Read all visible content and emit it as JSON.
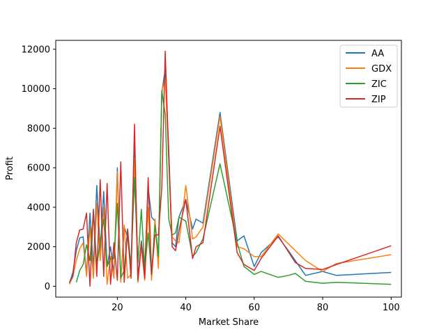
{
  "chart_data": {
    "type": "line",
    "title": "",
    "xlabel": "Market Share",
    "ylabel": "Profit",
    "xlim": [
      2,
      103
    ],
    "ylim": [
      -550,
      12450
    ],
    "xticks": [
      20,
      40,
      60,
      80,
      100
    ],
    "yticks": [
      0,
      2000,
      4000,
      6000,
      8000,
      10000,
      12000
    ],
    "xtick_labels": [
      "20",
      "40",
      "60",
      "80",
      "100"
    ],
    "ytick_labels": [
      "0",
      "2000",
      "4000",
      "6000",
      "8000",
      "10000",
      "12000"
    ],
    "grid": false,
    "legend_position": "top-right",
    "series": [
      {
        "name": "AA",
        "color": "#1f77b4",
        "points": [
          [
            6,
            150
          ],
          [
            7,
            700
          ],
          [
            8,
            1800
          ],
          [
            9,
            2450
          ],
          [
            10,
            2500
          ],
          [
            11,
            600
          ],
          [
            12,
            3700
          ],
          [
            13,
            900
          ],
          [
            14,
            5100
          ],
          [
            15,
            1800
          ],
          [
            16,
            4800
          ],
          [
            17,
            1000
          ],
          [
            18,
            2000
          ],
          [
            19,
            600
          ],
          [
            20,
            6000
          ],
          [
            21,
            300
          ],
          [
            22,
            3000
          ],
          [
            23,
            2500
          ],
          [
            24,
            800
          ],
          [
            25,
            7600
          ],
          [
            26,
            400
          ],
          [
            27,
            2300
          ],
          [
            28,
            800
          ],
          [
            29,
            5000
          ],
          [
            30,
            3500
          ],
          [
            31,
            3300
          ],
          [
            32,
            1500
          ],
          [
            33,
            9800
          ],
          [
            34,
            11000
          ],
          [
            35,
            7000
          ],
          [
            36,
            2200
          ],
          [
            37,
            2000
          ],
          [
            38,
            3500
          ],
          [
            40,
            4400
          ],
          [
            42,
            2900
          ],
          [
            43,
            3400
          ],
          [
            45,
            3200
          ],
          [
            50,
            8800
          ],
          [
            55,
            2300
          ],
          [
            57,
            2550
          ],
          [
            60,
            1000
          ],
          [
            62,
            1700
          ],
          [
            67,
            2500
          ],
          [
            70,
            1800
          ],
          [
            75,
            550
          ],
          [
            80,
            750
          ],
          [
            84,
            550
          ],
          [
            100,
            700
          ]
        ]
      },
      {
        "name": "GDX",
        "color": "#ff7f0e",
        "points": [
          [
            6,
            100
          ],
          [
            7,
            500
          ],
          [
            8,
            1300
          ],
          [
            9,
            1900
          ],
          [
            10,
            2200
          ],
          [
            11,
            500
          ],
          [
            12,
            3000
          ],
          [
            13,
            400
          ],
          [
            14,
            4200
          ],
          [
            15,
            1300
          ],
          [
            16,
            4000
          ],
          [
            17,
            100
          ],
          [
            18,
            1500
          ],
          [
            19,
            400
          ],
          [
            20,
            5800
          ],
          [
            21,
            200
          ],
          [
            22,
            3100
          ],
          [
            23,
            400
          ],
          [
            24,
            600
          ],
          [
            25,
            6500
          ],
          [
            26,
            200
          ],
          [
            27,
            2000
          ],
          [
            28,
            300
          ],
          [
            29,
            4000
          ],
          [
            30,
            300
          ],
          [
            31,
            3400
          ],
          [
            32,
            900
          ],
          [
            33,
            9900
          ],
          [
            34,
            10500
          ],
          [
            35,
            6500
          ],
          [
            36,
            2500
          ],
          [
            37,
            2300
          ],
          [
            38,
            2200
          ],
          [
            40,
            5100
          ],
          [
            42,
            2400
          ],
          [
            43,
            2500
          ],
          [
            45,
            3000
          ],
          [
            50,
            8600
          ],
          [
            55,
            2000
          ],
          [
            57,
            1900
          ],
          [
            60,
            1500
          ],
          [
            62,
            1500
          ],
          [
            67,
            2650
          ],
          [
            75,
            1300
          ],
          [
            80,
            750
          ],
          [
            84,
            1150
          ],
          [
            100,
            1600
          ]
        ]
      },
      {
        "name": "ZIC",
        "color": "#2ca02c",
        "points": [
          [
            8,
            200
          ],
          [
            9,
            800
          ],
          [
            10,
            1100
          ],
          [
            11,
            2100
          ],
          [
            12,
            1300
          ],
          [
            13,
            3800
          ],
          [
            14,
            1000
          ],
          [
            15,
            2300
          ],
          [
            16,
            3400
          ],
          [
            17,
            1000
          ],
          [
            18,
            1400
          ],
          [
            19,
            1400
          ],
          [
            20,
            4200
          ],
          [
            21,
            400
          ],
          [
            22,
            800
          ],
          [
            23,
            2900
          ],
          [
            24,
            1000
          ],
          [
            25,
            5500
          ],
          [
            26,
            1200
          ],
          [
            27,
            3900
          ],
          [
            28,
            900
          ],
          [
            29,
            2700
          ],
          [
            30,
            600
          ],
          [
            31,
            3100
          ],
          [
            32,
            1500
          ],
          [
            33,
            9900
          ],
          [
            34,
            8700
          ],
          [
            35,
            3400
          ],
          [
            36,
            2600
          ],
          [
            37,
            2700
          ],
          [
            38,
            3500
          ],
          [
            40,
            3300
          ],
          [
            42,
            1500
          ],
          [
            43,
            1700
          ],
          [
            45,
            2400
          ],
          [
            50,
            6200
          ],
          [
            55,
            2200
          ],
          [
            57,
            1000
          ],
          [
            60,
            600
          ],
          [
            62,
            750
          ],
          [
            67,
            450
          ],
          [
            70,
            550
          ],
          [
            72,
            650
          ],
          [
            75,
            250
          ],
          [
            80,
            150
          ],
          [
            84,
            200
          ],
          [
            100,
            100
          ]
        ]
      },
      {
        "name": "ZIP",
        "color": "#d62728",
        "points": [
          [
            6,
            200
          ],
          [
            7,
            500
          ],
          [
            8,
            2200
          ],
          [
            9,
            2850
          ],
          [
            10,
            2900
          ],
          [
            11,
            3700
          ],
          [
            12,
            0
          ],
          [
            13,
            3900
          ],
          [
            14,
            500
          ],
          [
            15,
            5400
          ],
          [
            16,
            500
          ],
          [
            17,
            5200
          ],
          [
            18,
            100
          ],
          [
            19,
            2200
          ],
          [
            20,
            300
          ],
          [
            21,
            6300
          ],
          [
            22,
            200
          ],
          [
            23,
            2900
          ],
          [
            24,
            400
          ],
          [
            25,
            8200
          ],
          [
            26,
            300
          ],
          [
            27,
            2200
          ],
          [
            28,
            400
          ],
          [
            29,
            5500
          ],
          [
            30,
            600
          ],
          [
            31,
            2600
          ],
          [
            32,
            2600
          ],
          [
            33,
            5000
          ],
          [
            34,
            11900
          ],
          [
            35,
            6500
          ],
          [
            36,
            2000
          ],
          [
            37,
            1800
          ],
          [
            38,
            2800
          ],
          [
            40,
            4400
          ],
          [
            42,
            1400
          ],
          [
            43,
            2000
          ],
          [
            45,
            2200
          ],
          [
            50,
            8100
          ],
          [
            55,
            1700
          ],
          [
            57,
            1100
          ],
          [
            60,
            800
          ],
          [
            62,
            1400
          ],
          [
            67,
            2550
          ],
          [
            72,
            1200
          ],
          [
            75,
            900
          ],
          [
            80,
            850
          ],
          [
            84,
            1100
          ],
          [
            100,
            2050
          ]
        ]
      }
    ]
  }
}
